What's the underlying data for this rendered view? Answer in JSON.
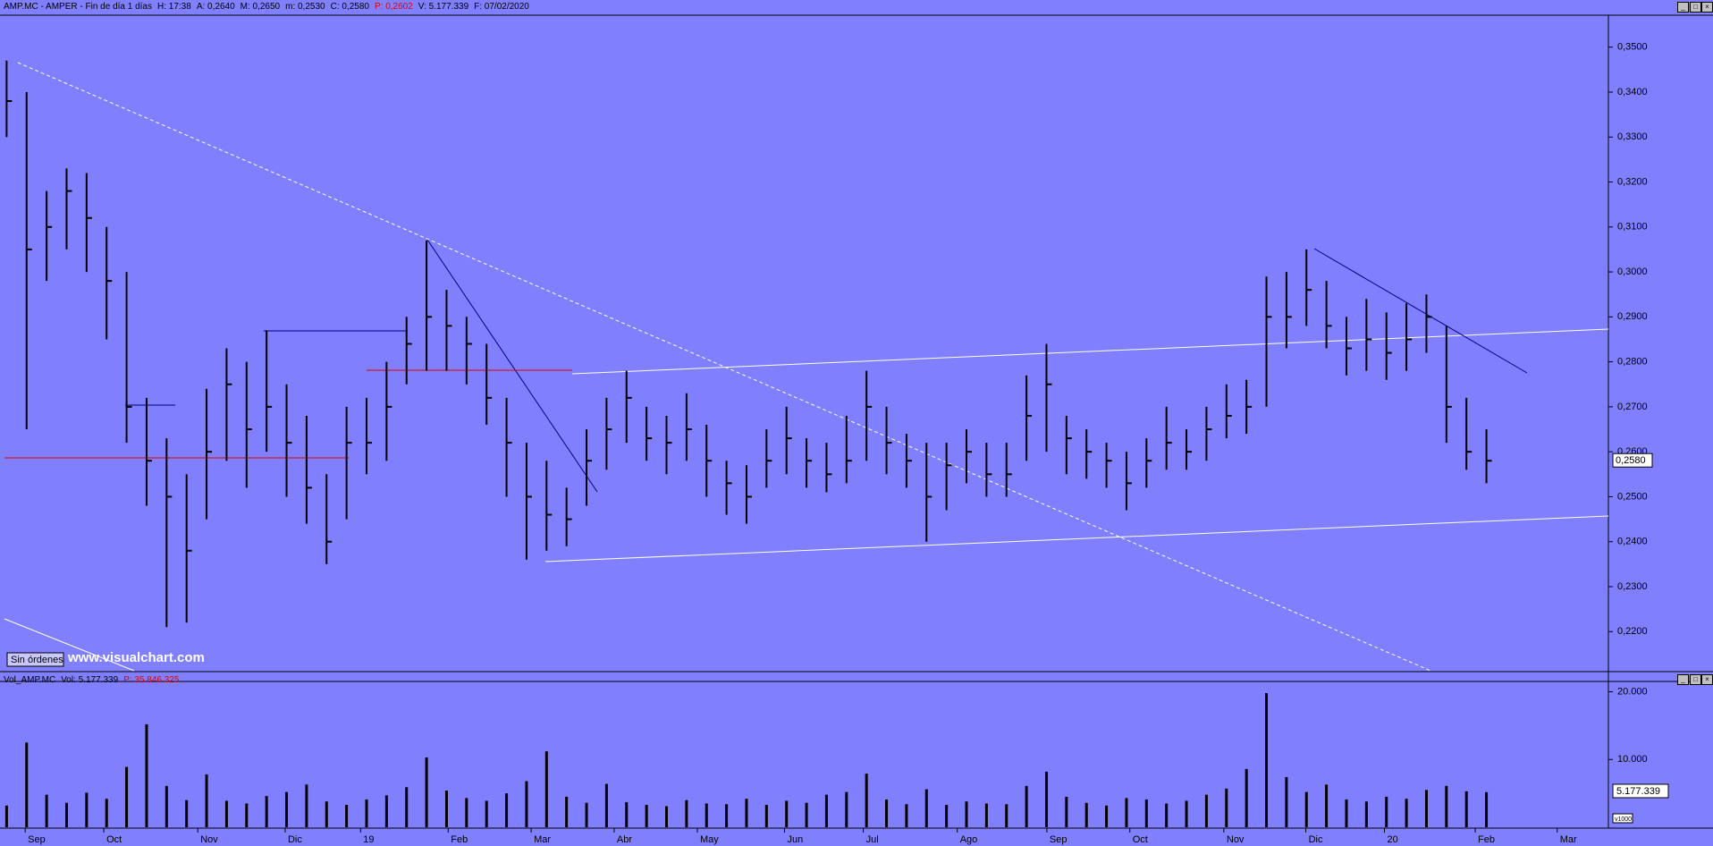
{
  "header": {
    "items": [
      "AMP.MC - AMPER - Fin de día 1 días",
      "H: 17:38",
      "A: 0,2640",
      "M: 0,2650",
      "m: 0,2530",
      "C: 0,2580",
      "P: 0,2602",
      "V: 5.177.339",
      "F: 07/02/2020"
    ],
    "volume_items": [
      "Vol_AMP.MC",
      "Vol: 5.177.339",
      "P: 35.846.325"
    ],
    "volume_last": "5.177.339",
    "button": "Sin órdenes",
    "watermark": "www.visualchart.com",
    "scale_note": "v1000"
  },
  "chart_data": [
    {
      "type": "ohlc",
      "color": "#000000",
      "high": [
        0.347,
        0.34,
        0.318,
        0.323,
        0.322,
        0.31,
        0.3,
        0.272,
        0.263,
        0.255,
        0.274,
        0.283,
        0.28,
        0.287,
        0.275,
        0.268,
        0.255,
        0.27,
        0.272,
        0.28,
        0.29,
        0.307,
        0.296,
        0.29,
        0.284,
        0.272,
        0.262,
        0.258,
        0.252,
        0.265,
        0.272,
        0.278,
        0.27,
        0.268,
        0.273,
        0.266,
        0.258,
        0.257,
        0.265,
        0.27,
        0.263,
        0.262,
        0.268,
        0.278,
        0.27,
        0.264,
        0.262,
        0.262,
        0.265,
        0.262,
        0.262,
        0.277,
        0.284,
        0.268,
        0.265,
        0.262,
        0.26,
        0.263,
        0.27,
        0.265,
        0.27,
        0.275,
        0.276,
        0.299,
        0.3,
        0.305,
        0.298,
        0.29,
        0.294,
        0.291,
        0.293,
        0.295,
        0.288,
        0.272,
        0.265
      ],
      "low": [
        0.33,
        0.265,
        0.298,
        0.305,
        0.3,
        0.285,
        0.262,
        0.248,
        0.221,
        0.222,
        0.245,
        0.258,
        0.252,
        0.26,
        0.25,
        0.244,
        0.235,
        0.245,
        0.255,
        0.258,
        0.275,
        0.278,
        0.278,
        0.275,
        0.266,
        0.25,
        0.236,
        0.238,
        0.239,
        0.248,
        0.256,
        0.262,
        0.258,
        0.255,
        0.258,
        0.25,
        0.246,
        0.244,
        0.252,
        0.255,
        0.252,
        0.251,
        0.253,
        0.258,
        0.255,
        0.252,
        0.24,
        0.247,
        0.253,
        0.25,
        0.25,
        0.258,
        0.26,
        0.255,
        0.254,
        0.252,
        0.247,
        0.252,
        0.256,
        0.256,
        0.258,
        0.263,
        0.264,
        0.27,
        0.283,
        0.288,
        0.283,
        0.277,
        0.278,
        0.276,
        0.278,
        0.282,
        0.262,
        0.256,
        0.253
      ],
      "close": [
        0.338,
        0.305,
        0.31,
        0.318,
        0.312,
        0.298,
        0.27,
        0.258,
        0.25,
        0.238,
        0.26,
        0.275,
        0.265,
        0.27,
        0.262,
        0.252,
        0.24,
        0.262,
        0.262,
        0.27,
        0.284,
        0.29,
        0.288,
        0.284,
        0.272,
        0.262,
        0.25,
        0.246,
        0.245,
        0.258,
        0.265,
        0.272,
        0.263,
        0.262,
        0.265,
        0.258,
        0.253,
        0.25,
        0.258,
        0.263,
        0.258,
        0.255,
        0.258,
        0.27,
        0.262,
        0.258,
        0.25,
        0.257,
        0.26,
        0.255,
        0.255,
        0.268,
        0.275,
        0.263,
        0.26,
        0.258,
        0.253,
        0.258,
        0.262,
        0.26,
        0.265,
        0.268,
        0.27,
        0.29,
        0.29,
        0.296,
        0.288,
        0.283,
        0.285,
        0.282,
        0.285,
        0.29,
        0.27,
        0.26,
        0.258
      ],
      "last": {
        "value": 0.258,
        "label": "0,2580"
      },
      "xlim": [
        -0.33,
        80.1
      ],
      "xticks": [
        {
          "value": 0.93,
          "label": "Sep"
        },
        {
          "value": 4.86,
          "label": "Oct"
        },
        {
          "value": 9.56,
          "label": "Nov"
        },
        {
          "value": 13.93,
          "label": "Dic"
        },
        {
          "value": 17.7,
          "label": "19"
        },
        {
          "value": 22.08,
          "label": "Feb"
        },
        {
          "value": 26.23,
          "label": "Mar"
        },
        {
          "value": 30.38,
          "label": "Abr"
        },
        {
          "value": 34.54,
          "label": "May"
        },
        {
          "value": 38.9,
          "label": "Jun"
        },
        {
          "value": 42.84,
          "label": "Jul"
        },
        {
          "value": 47.54,
          "label": "Ago"
        },
        {
          "value": 52.02,
          "label": "Sep"
        },
        {
          "value": 56.17,
          "label": "Oct"
        },
        {
          "value": 60.87,
          "label": "Nov"
        },
        {
          "value": 64.97,
          "label": "Dic"
        },
        {
          "value": 68.9,
          "label": "20"
        },
        {
          "value": 73.44,
          "label": "Feb"
        },
        {
          "value": 77.54,
          "label": "Mar"
        }
      ],
      "ylim": [
        0.2113,
        0.3571
      ],
      "yticks": [
        {
          "value": 0.22,
          "label": "0,2200"
        },
        {
          "value": 0.23,
          "label": "0,2300"
        },
        {
          "value": 0.24,
          "label": "0,2400"
        },
        {
          "value": 0.25,
          "label": "0,2500"
        },
        {
          "value": 0.26,
          "label": "0,2600"
        },
        {
          "value": 0.27,
          "label": "0,2700"
        },
        {
          "value": 0.28,
          "label": "0,2800"
        },
        {
          "value": 0.29,
          "label": "0,2900"
        },
        {
          "value": 0.3,
          "label": "0,3000"
        },
        {
          "value": 0.31,
          "label": "0,3100"
        },
        {
          "value": 0.32,
          "label": "0,3200"
        },
        {
          "value": 0.33,
          "label": "0,3300"
        },
        {
          "value": 0.34,
          "label": "0,3400"
        },
        {
          "value": 0.35,
          "label": "0,3500"
        }
      ]
    },
    {
      "type": "bar",
      "color": "#000000",
      "values": [
        3200,
        12500,
        4800,
        3600,
        5100,
        4200,
        8900,
        15200,
        6100,
        4000,
        7800,
        3900,
        3500,
        4600,
        5200,
        6300,
        3800,
        3300,
        4100,
        4700,
        5900,
        10300,
        5400,
        4300,
        3900,
        5000,
        6800,
        11200,
        4500,
        3600,
        6400,
        3700,
        3300,
        3100,
        4000,
        3500,
        3400,
        4200,
        3300,
        3900,
        3600,
        4800,
        5200,
        7900,
        4100,
        3400,
        5600,
        3300,
        3800,
        3500,
        3400,
        6100,
        8200,
        4500,
        3600,
        3200,
        4300,
        4100,
        3500,
        3900,
        4800,
        5700,
        8600,
        19800,
        7400,
        5200,
        6300,
        4100,
        3800,
        4500,
        4200,
        5500,
        6100,
        5300,
        5177
      ],
      "xlim": [
        -0.33,
        80.1
      ],
      "ylim": [
        0,
        21120
      ],
      "yticks": [
        {
          "value": 10000,
          "label": "10.000"
        },
        {
          "value": 20000,
          "label": "20.000"
        }
      ]
    }
  ]
}
